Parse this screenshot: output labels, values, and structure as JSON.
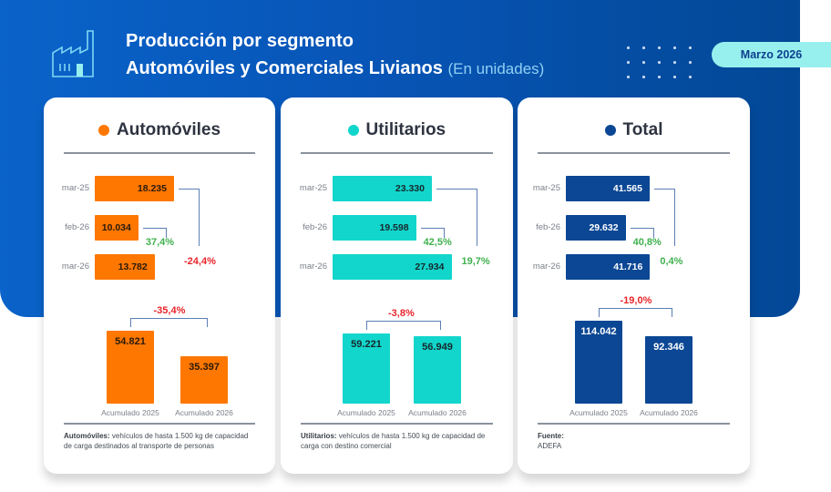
{
  "header": {
    "title_line1": "Producción por segmento",
    "title_line2": "Automóviles y Comerciales Livianos",
    "unit": "(En unidades)",
    "period": "Marzo 2026",
    "icon": "factory-icon"
  },
  "colors": {
    "automoviles": "#fe7700",
    "utilitarios": "#12d6cc",
    "total": "#0b4794",
    "positive": "#3fb14e",
    "negative": "#e8252b",
    "bracket": "#5b7fb3"
  },
  "chart_data": [
    {
      "type": "bar",
      "orientation": "horizontal",
      "title": "Automóviles",
      "categories": [
        "mar-25",
        "feb-26",
        "mar-26"
      ],
      "values": [
        18235,
        10034,
        13782
      ],
      "value_labels": [
        "18.235",
        "10.034",
        "13.782"
      ],
      "annotations": [
        {
          "from": "feb-26",
          "to": "mar-26",
          "label": "37,4%",
          "sign": "positive"
        },
        {
          "from": "mar-25",
          "to": "mar-26",
          "label": "-24,4%",
          "sign": "negative"
        }
      ],
      "cumulative": {
        "type": "bar",
        "categories": [
          "Acumulado 2025",
          "Acumulado 2026"
        ],
        "values": [
          54821,
          35397
        ],
        "value_labels": [
          "54.821",
          "35.397"
        ],
        "change_label": "-35,4%",
        "change_sign": "negative"
      },
      "note_bold": "Automóviles:",
      "note_text": " vehículos de hasta 1.500 kg de capacidad de carga destinados al transporte de personas"
    },
    {
      "type": "bar",
      "orientation": "horizontal",
      "title": "Utilitarios",
      "categories": [
        "mar-25",
        "feb-26",
        "mar-26"
      ],
      "values": [
        23330,
        19598,
        27934
      ],
      "value_labels": [
        "23.330",
        "19.598",
        "27.934"
      ],
      "annotations": [
        {
          "from": "feb-26",
          "to": "mar-26",
          "label": "42,5%",
          "sign": "positive"
        },
        {
          "from": "mar-25",
          "to": "mar-26",
          "label": "19,7%",
          "sign": "positive"
        }
      ],
      "cumulative": {
        "type": "bar",
        "categories": [
          "Acumulado 2025",
          "Acumulado 2026"
        ],
        "values": [
          59221,
          56949
        ],
        "value_labels": [
          "59.221",
          "56.949"
        ],
        "change_label": "-3,8%",
        "change_sign": "negative"
      },
      "note_bold": "Utilitarios:",
      "note_text": " vehículos de hasta 1.500 kg de capacidad de carga con destino comercial"
    },
    {
      "type": "bar",
      "orientation": "horizontal",
      "title": "Total",
      "categories": [
        "mar-25",
        "feb-26",
        "mar-26"
      ],
      "values": [
        41565,
        29632,
        41716
      ],
      "value_labels": [
        "41.565",
        "29.632",
        "41.716"
      ],
      "annotations": [
        {
          "from": "feb-26",
          "to": "mar-26",
          "label": "40,8%",
          "sign": "positive"
        },
        {
          "from": "mar-25",
          "to": "mar-26",
          "label": "0,4%",
          "sign": "positive"
        }
      ],
      "cumulative": {
        "type": "bar",
        "categories": [
          "Acumulado 2025",
          "Acumulado 2026"
        ],
        "values": [
          114042,
          92346
        ],
        "value_labels": [
          "114.042",
          "92.346"
        ],
        "change_label": "-19,0%",
        "change_sign": "negative"
      },
      "note_bold": "Fuente:",
      "note_text": "ADEFA"
    }
  ]
}
